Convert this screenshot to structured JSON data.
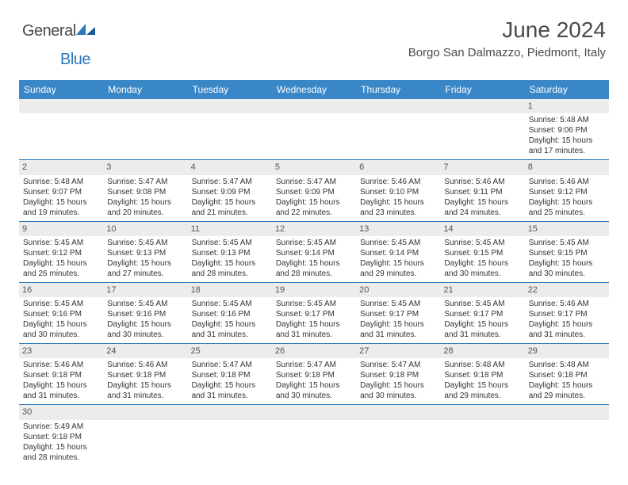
{
  "logo": {
    "text1": "General",
    "text2": "Blue"
  },
  "title": "June 2024",
  "location": "Borgo San Dalmazzo, Piedmont, Italy",
  "dayNames": [
    "Sunday",
    "Monday",
    "Tuesday",
    "Wednesday",
    "Thursday",
    "Friday",
    "Saturday"
  ],
  "colors": {
    "header_bg": "#3a87c8",
    "header_text": "#ffffff",
    "cell_border": "#2a78bd",
    "daynum_bg": "#ececec",
    "text": "#333333",
    "title_text": "#4a4a4a",
    "logo_blue": "#2a78bd"
  },
  "weeks": [
    [
      {
        "n": "",
        "l1": "",
        "l2": "",
        "l3": "",
        "l4": ""
      },
      {
        "n": "",
        "l1": "",
        "l2": "",
        "l3": "",
        "l4": ""
      },
      {
        "n": "",
        "l1": "",
        "l2": "",
        "l3": "",
        "l4": ""
      },
      {
        "n": "",
        "l1": "",
        "l2": "",
        "l3": "",
        "l4": ""
      },
      {
        "n": "",
        "l1": "",
        "l2": "",
        "l3": "",
        "l4": ""
      },
      {
        "n": "",
        "l1": "",
        "l2": "",
        "l3": "",
        "l4": ""
      },
      {
        "n": "1",
        "l1": "Sunrise: 5:48 AM",
        "l2": "Sunset: 9:06 PM",
        "l3": "Daylight: 15 hours",
        "l4": "and 17 minutes."
      }
    ],
    [
      {
        "n": "2",
        "l1": "Sunrise: 5:48 AM",
        "l2": "Sunset: 9:07 PM",
        "l3": "Daylight: 15 hours",
        "l4": "and 19 minutes."
      },
      {
        "n": "3",
        "l1": "Sunrise: 5:47 AM",
        "l2": "Sunset: 9:08 PM",
        "l3": "Daylight: 15 hours",
        "l4": "and 20 minutes."
      },
      {
        "n": "4",
        "l1": "Sunrise: 5:47 AM",
        "l2": "Sunset: 9:09 PM",
        "l3": "Daylight: 15 hours",
        "l4": "and 21 minutes."
      },
      {
        "n": "5",
        "l1": "Sunrise: 5:47 AM",
        "l2": "Sunset: 9:09 PM",
        "l3": "Daylight: 15 hours",
        "l4": "and 22 minutes."
      },
      {
        "n": "6",
        "l1": "Sunrise: 5:46 AM",
        "l2": "Sunset: 9:10 PM",
        "l3": "Daylight: 15 hours",
        "l4": "and 23 minutes."
      },
      {
        "n": "7",
        "l1": "Sunrise: 5:46 AM",
        "l2": "Sunset: 9:11 PM",
        "l3": "Daylight: 15 hours",
        "l4": "and 24 minutes."
      },
      {
        "n": "8",
        "l1": "Sunrise: 5:46 AM",
        "l2": "Sunset: 9:12 PM",
        "l3": "Daylight: 15 hours",
        "l4": "and 25 minutes."
      }
    ],
    [
      {
        "n": "9",
        "l1": "Sunrise: 5:45 AM",
        "l2": "Sunset: 9:12 PM",
        "l3": "Daylight: 15 hours",
        "l4": "and 26 minutes."
      },
      {
        "n": "10",
        "l1": "Sunrise: 5:45 AM",
        "l2": "Sunset: 9:13 PM",
        "l3": "Daylight: 15 hours",
        "l4": "and 27 minutes."
      },
      {
        "n": "11",
        "l1": "Sunrise: 5:45 AM",
        "l2": "Sunset: 9:13 PM",
        "l3": "Daylight: 15 hours",
        "l4": "and 28 minutes."
      },
      {
        "n": "12",
        "l1": "Sunrise: 5:45 AM",
        "l2": "Sunset: 9:14 PM",
        "l3": "Daylight: 15 hours",
        "l4": "and 28 minutes."
      },
      {
        "n": "13",
        "l1": "Sunrise: 5:45 AM",
        "l2": "Sunset: 9:14 PM",
        "l3": "Daylight: 15 hours",
        "l4": "and 29 minutes."
      },
      {
        "n": "14",
        "l1": "Sunrise: 5:45 AM",
        "l2": "Sunset: 9:15 PM",
        "l3": "Daylight: 15 hours",
        "l4": "and 30 minutes."
      },
      {
        "n": "15",
        "l1": "Sunrise: 5:45 AM",
        "l2": "Sunset: 9:15 PM",
        "l3": "Daylight: 15 hours",
        "l4": "and 30 minutes."
      }
    ],
    [
      {
        "n": "16",
        "l1": "Sunrise: 5:45 AM",
        "l2": "Sunset: 9:16 PM",
        "l3": "Daylight: 15 hours",
        "l4": "and 30 minutes."
      },
      {
        "n": "17",
        "l1": "Sunrise: 5:45 AM",
        "l2": "Sunset: 9:16 PM",
        "l3": "Daylight: 15 hours",
        "l4": "and 30 minutes."
      },
      {
        "n": "18",
        "l1": "Sunrise: 5:45 AM",
        "l2": "Sunset: 9:16 PM",
        "l3": "Daylight: 15 hours",
        "l4": "and 31 minutes."
      },
      {
        "n": "19",
        "l1": "Sunrise: 5:45 AM",
        "l2": "Sunset: 9:17 PM",
        "l3": "Daylight: 15 hours",
        "l4": "and 31 minutes."
      },
      {
        "n": "20",
        "l1": "Sunrise: 5:45 AM",
        "l2": "Sunset: 9:17 PM",
        "l3": "Daylight: 15 hours",
        "l4": "and 31 minutes."
      },
      {
        "n": "21",
        "l1": "Sunrise: 5:45 AM",
        "l2": "Sunset: 9:17 PM",
        "l3": "Daylight: 15 hours",
        "l4": "and 31 minutes."
      },
      {
        "n": "22",
        "l1": "Sunrise: 5:46 AM",
        "l2": "Sunset: 9:17 PM",
        "l3": "Daylight: 15 hours",
        "l4": "and 31 minutes."
      }
    ],
    [
      {
        "n": "23",
        "l1": "Sunrise: 5:46 AM",
        "l2": "Sunset: 9:18 PM",
        "l3": "Daylight: 15 hours",
        "l4": "and 31 minutes."
      },
      {
        "n": "24",
        "l1": "Sunrise: 5:46 AM",
        "l2": "Sunset: 9:18 PM",
        "l3": "Daylight: 15 hours",
        "l4": "and 31 minutes."
      },
      {
        "n": "25",
        "l1": "Sunrise: 5:47 AM",
        "l2": "Sunset: 9:18 PM",
        "l3": "Daylight: 15 hours",
        "l4": "and 31 minutes."
      },
      {
        "n": "26",
        "l1": "Sunrise: 5:47 AM",
        "l2": "Sunset: 9:18 PM",
        "l3": "Daylight: 15 hours",
        "l4": "and 30 minutes."
      },
      {
        "n": "27",
        "l1": "Sunrise: 5:47 AM",
        "l2": "Sunset: 9:18 PM",
        "l3": "Daylight: 15 hours",
        "l4": "and 30 minutes."
      },
      {
        "n": "28",
        "l1": "Sunrise: 5:48 AM",
        "l2": "Sunset: 9:18 PM",
        "l3": "Daylight: 15 hours",
        "l4": "and 29 minutes."
      },
      {
        "n": "29",
        "l1": "Sunrise: 5:48 AM",
        "l2": "Sunset: 9:18 PM",
        "l3": "Daylight: 15 hours",
        "l4": "and 29 minutes."
      }
    ],
    [
      {
        "n": "30",
        "l1": "Sunrise: 5:49 AM",
        "l2": "Sunset: 9:18 PM",
        "l3": "Daylight: 15 hours",
        "l4": "and 28 minutes."
      },
      {
        "n": "",
        "l1": "",
        "l2": "",
        "l3": "",
        "l4": ""
      },
      {
        "n": "",
        "l1": "",
        "l2": "",
        "l3": "",
        "l4": ""
      },
      {
        "n": "",
        "l1": "",
        "l2": "",
        "l3": "",
        "l4": ""
      },
      {
        "n": "",
        "l1": "",
        "l2": "",
        "l3": "",
        "l4": ""
      },
      {
        "n": "",
        "l1": "",
        "l2": "",
        "l3": "",
        "l4": ""
      },
      {
        "n": "",
        "l1": "",
        "l2": "",
        "l3": "",
        "l4": ""
      }
    ]
  ]
}
